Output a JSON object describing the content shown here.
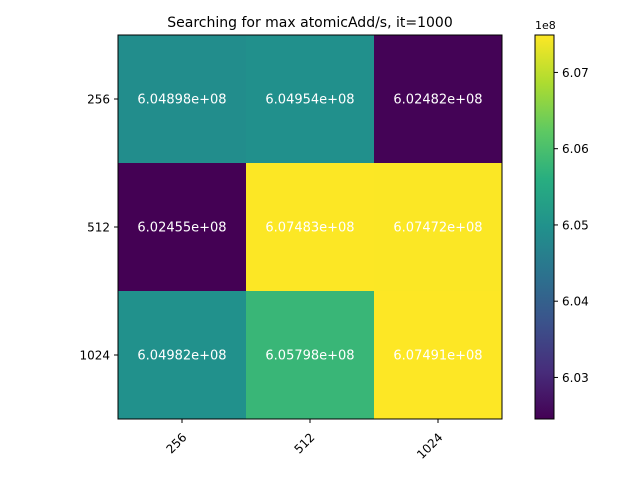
{
  "chart_data": {
    "type": "heatmap",
    "title": "Searching for max atomicAdd/s, it=1000",
    "x_categories": [
      "256",
      "512",
      "1024"
    ],
    "y_categories": [
      "256",
      "512",
      "1024"
    ],
    "values": [
      [
        604898000,
        604954000,
        602482000
      ],
      [
        602455000,
        607483000,
        607472000
      ],
      [
        604982000,
        605798000,
        607491000
      ]
    ],
    "cell_labels": [
      [
        "6.04898e+08",
        "6.04954e+08",
        "6.02482e+08"
      ],
      [
        "6.02455e+08",
        "6.07483e+08",
        "6.07472e+08"
      ],
      [
        "6.04982e+08",
        "6.05798e+08",
        "6.07491e+08"
      ]
    ],
    "colormap": "viridis",
    "colorbar": {
      "range": [
        602455000,
        607491000
      ],
      "ticks": [
        603000000,
        604000000,
        605000000,
        606000000,
        607000000
      ],
      "tick_labels": [
        "6.03",
        "6.04",
        "6.05",
        "6.06",
        "6.07"
      ],
      "offset_label": "1e8"
    },
    "cell_text_color": "#ffffff"
  }
}
